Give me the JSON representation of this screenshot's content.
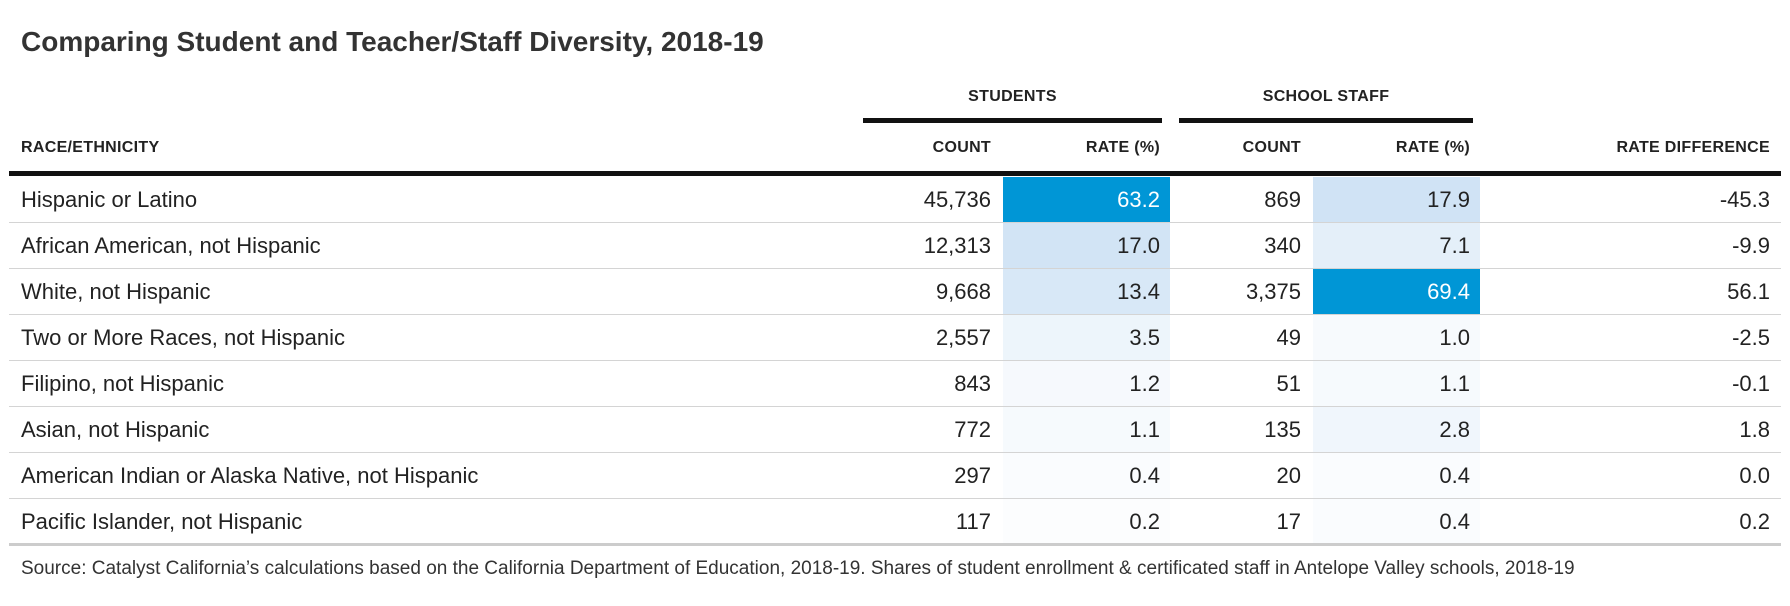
{
  "title": "Comparing Student and Teacher/Staff Diversity, 2018-19",
  "groups": [
    "STUDENTS",
    "SCHOOL STAFF"
  ],
  "columns": [
    "RACE/ETHNICITY",
    "COUNT",
    "RATE (%)",
    "COUNT",
    "RATE (%)",
    "RATE DIFFERENCE"
  ],
  "rows": [
    [
      "Hispanic or Latino",
      "45,736",
      "63.2",
      "869",
      "17.9",
      "-45.3"
    ],
    [
      "African American, not Hispanic",
      "12,313",
      "17.0",
      "340",
      "7.1",
      "-9.9"
    ],
    [
      "White, not Hispanic",
      "9,668",
      "13.4",
      "3,375",
      "69.4",
      "56.1"
    ],
    [
      "Two or More Races, not Hispanic",
      "2,557",
      "3.5",
      "49",
      "1.0",
      "-2.5"
    ],
    [
      "Filipino, not Hispanic",
      "843",
      "1.2",
      "51",
      "1.1",
      "-0.1"
    ],
    [
      "Asian, not Hispanic",
      "772",
      "1.1",
      "135",
      "2.8",
      "1.8"
    ],
    [
      "American Indian or Alaska Native, not Hispanic",
      "297",
      "0.4",
      "20",
      "0.4",
      "0.0"
    ],
    [
      "Pacific Islander, not Hispanic",
      "117",
      "0.2",
      "17",
      "0.4",
      "0.2"
    ]
  ],
  "source": "Source: Catalyst California’s calculations based on the California Department of Education, 2018-19. Shares of student enrollment & certificated staff in Antelope Valley schools, 2018-19"
}
